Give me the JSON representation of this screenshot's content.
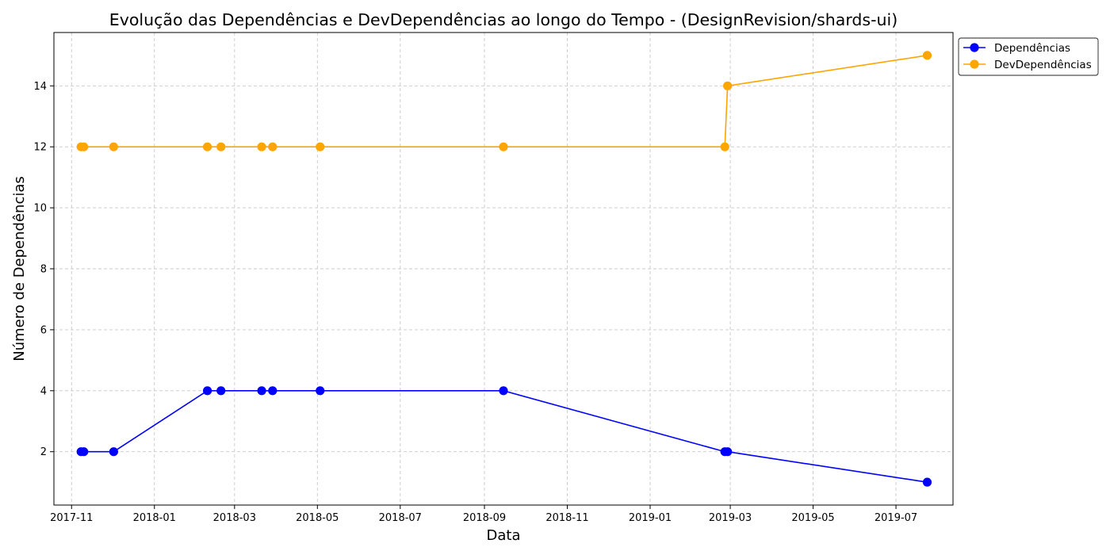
{
  "chart_data": {
    "type": "line",
    "title": "Evolução das Dependências e DevDependências ao longo do Tempo - (DesignRevision/shards-ui)",
    "xlabel": "Data",
    "ylabel": "Número de Dependências",
    "x_ticks": [
      "2017-11",
      "2018-01",
      "2018-03",
      "2018-05",
      "2018-07",
      "2018-09",
      "2018-11",
      "2019-01",
      "2019-03",
      "2019-05",
      "2019-07"
    ],
    "y_ticks": [
      2,
      4,
      6,
      8,
      10,
      12,
      14
    ],
    "xlim": [
      "2017-10-19",
      "2019-08-12"
    ],
    "ylim": [
      0.25,
      15.75
    ],
    "grid": true,
    "legend_position": "outside-top-right",
    "x": [
      "2017-11-08",
      "2017-11-10",
      "2017-12-02",
      "2018-02-09",
      "2018-02-19",
      "2018-03-21",
      "2018-03-29",
      "2018-05-03",
      "2018-09-15",
      "2019-02-25",
      "2019-02-27",
      "2019-07-24"
    ],
    "series": [
      {
        "name": "Dependências",
        "color": "#0000ff",
        "values": [
          2,
          2,
          2,
          4,
          4,
          4,
          4,
          4,
          4,
          2,
          2,
          1
        ]
      },
      {
        "name": "DevDependências",
        "color": "#ffa500",
        "values": [
          12,
          12,
          12,
          12,
          12,
          12,
          12,
          12,
          12,
          12,
          14,
          15
        ]
      }
    ]
  }
}
